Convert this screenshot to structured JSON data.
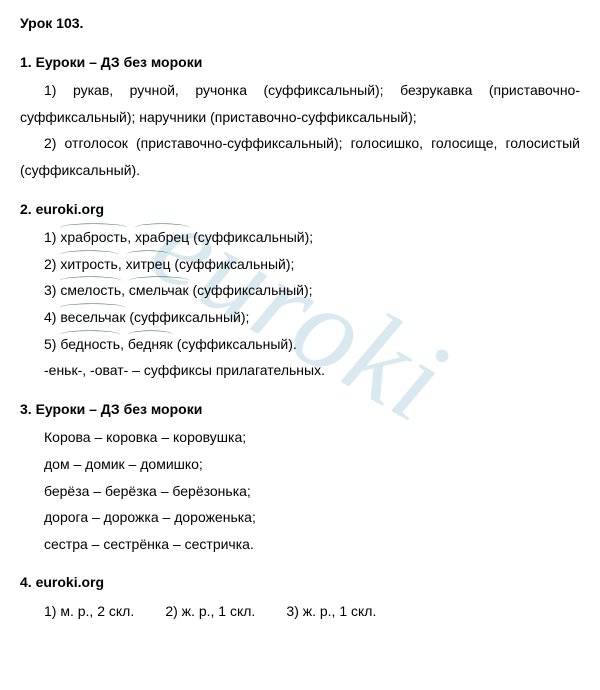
{
  "lesson": {
    "title": "Урок 103."
  },
  "section1": {
    "heading": "1. Еуроки – ДЗ без мороки",
    "line1": "1) рукав, ручной, ручонка (суффиксальный); безрукавка (приставочно-суффиксальный); наручники (приставочно-суффиксальный);",
    "line2": "2) отголосок (приставочно-суффиксальный); голосишко, голосище, голосистый (суффиксальный)."
  },
  "section2": {
    "heading": "2. euroki.org",
    "items": [
      {
        "num": "1) ",
        "w1": "храбрость",
        "sep1": ", ",
        "w2": "храбрец",
        "tail": " (суффиксальный);"
      },
      {
        "num": "2) ",
        "w1": "хитрость",
        "sep1": ", ",
        "w2": "хитрец",
        "tail": " (суффиксальный);"
      },
      {
        "num": "3) ",
        "w1": "смелость",
        "sep1": ", ",
        "w2": "смельчак",
        "tail": " (суффиксальный);"
      },
      {
        "num": "4) ",
        "w1": "весельчак",
        "sep1": "",
        "w2": "",
        "tail": " (суффиксальный);"
      },
      {
        "num": "5) ",
        "w1": "бедность",
        "sep1": ", ",
        "w2": "бедняк",
        "tail": " (суффиксальный)."
      }
    ],
    "note": "-еньк-, -оват- – суффиксы прилагательных."
  },
  "section3": {
    "heading": "3. Еуроки – ДЗ без мороки",
    "lines": [
      "Корова – коровка – коровушка;",
      "дом – домик – домишко;",
      "берёза – берёзка – берёзонька;",
      "дорога – дорожка – дороженька;",
      "сестра – сестрёнка – сестричка."
    ]
  },
  "section4": {
    "heading": "4. euroki.org",
    "line": "1) м. р., 2 скл.        2) ж. р., 1 скл.        3) ж. р., 1 скл."
  },
  "watermark_text": "euroki",
  "colors": {
    "text": "#000000",
    "background": "#ffffff",
    "marker": "#3a6b4a",
    "watermark": "rgba(150,190,210,0.35)"
  }
}
